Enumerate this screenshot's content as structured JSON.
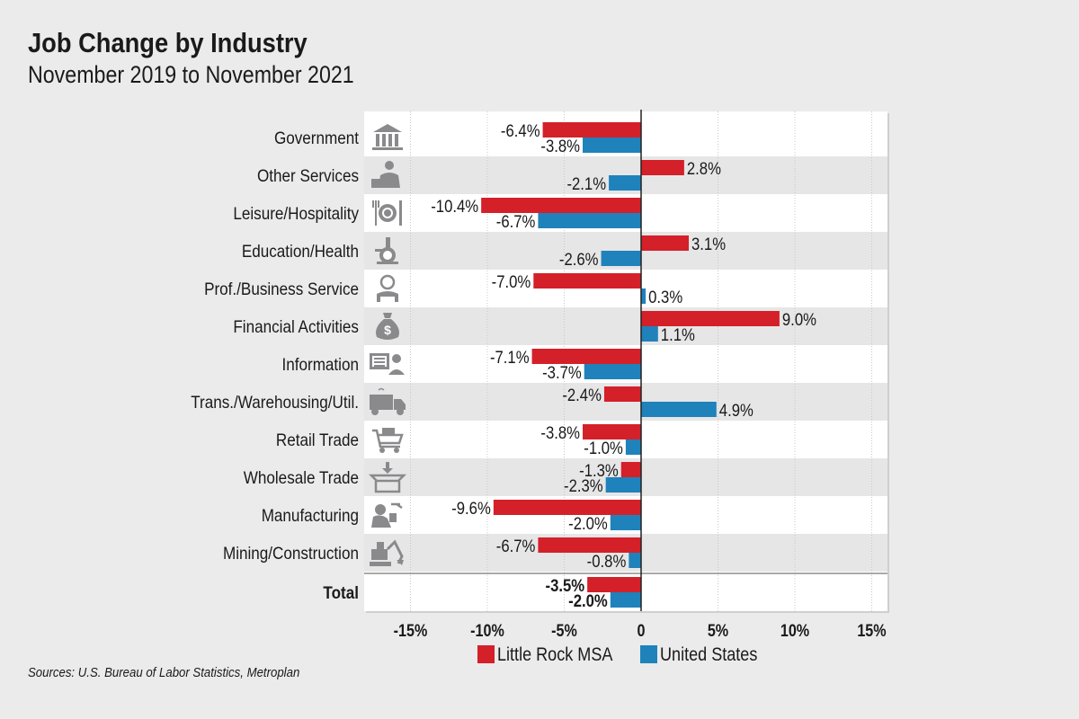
{
  "title": "Job Change by Industry",
  "subtitle": "November 2019 to November 2021",
  "source": "Sources: U.S. Bureau of Labor Statistics, Metroplan",
  "colors": {
    "little_rock": "#d42029",
    "united_states": "#1f82bb",
    "band": "#e6e6e7",
    "icon": "#8a8a8c"
  },
  "chart_data": {
    "type": "bar",
    "orientation": "horizontal",
    "title": "Job Change by Industry",
    "subtitle": "November 2019 to November 2021",
    "categories": [
      "Government",
      "Other Services",
      "Leisure/Hospitality",
      "Education/Health",
      "Prof./Business Service",
      "Financial Activities",
      "Information",
      "Trans./Warehousing/Util.",
      "Retail Trade",
      "Wholesale Trade",
      "Manufacturing",
      "Mining/Construction",
      "Total"
    ],
    "icons": [
      "government-building-icon",
      "businessman-laptop-icon",
      "plate-fork-knife-icon",
      "microscope-icon",
      "office-worker-icon",
      "money-bag-icon",
      "information-computer-icon",
      "delivery-truck-icon",
      "shopping-cart-icon",
      "box-arrow-icon",
      "factory-worker-icon",
      "excavator-icon",
      ""
    ],
    "series": [
      {
        "name": "Little Rock MSA",
        "values": [
          -6.4,
          2.8,
          -10.4,
          3.1,
          -7.0,
          9.0,
          -7.1,
          -2.4,
          -3.8,
          -1.3,
          -9.6,
          -6.7,
          -3.5
        ]
      },
      {
        "name": "United States",
        "values": [
          -3.8,
          -2.1,
          -6.7,
          -2.6,
          0.3,
          1.1,
          -3.7,
          4.9,
          -1.0,
          -2.3,
          -2.0,
          -0.8,
          -2.0
        ]
      }
    ],
    "xticks": [
      "-15%",
      "-10%",
      "-5%",
      "0",
      "5%",
      "10%",
      "15%"
    ],
    "xtick_values": [
      -15,
      -10,
      -5,
      0,
      5,
      10,
      15
    ],
    "xlim": [
      -18,
      16
    ],
    "grid": true,
    "legend": "bottom",
    "value_format": "percent, one decimal"
  }
}
